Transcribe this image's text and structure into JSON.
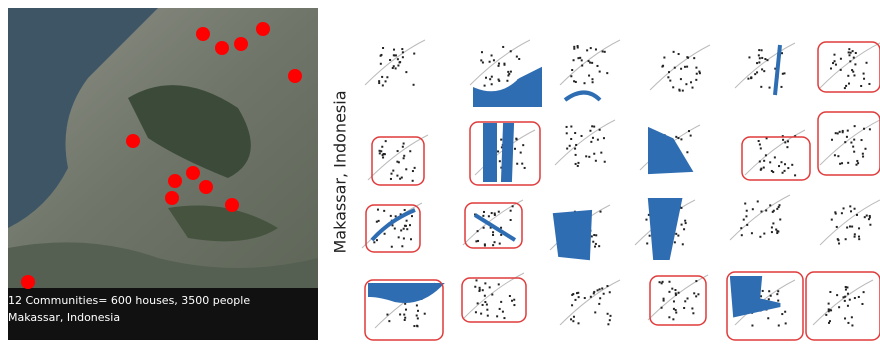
{
  "caption": "12 Communities= 600 houses, 3500 people Makassar, Indonesia",
  "side_label": "Makassar, Indonesia"
}
